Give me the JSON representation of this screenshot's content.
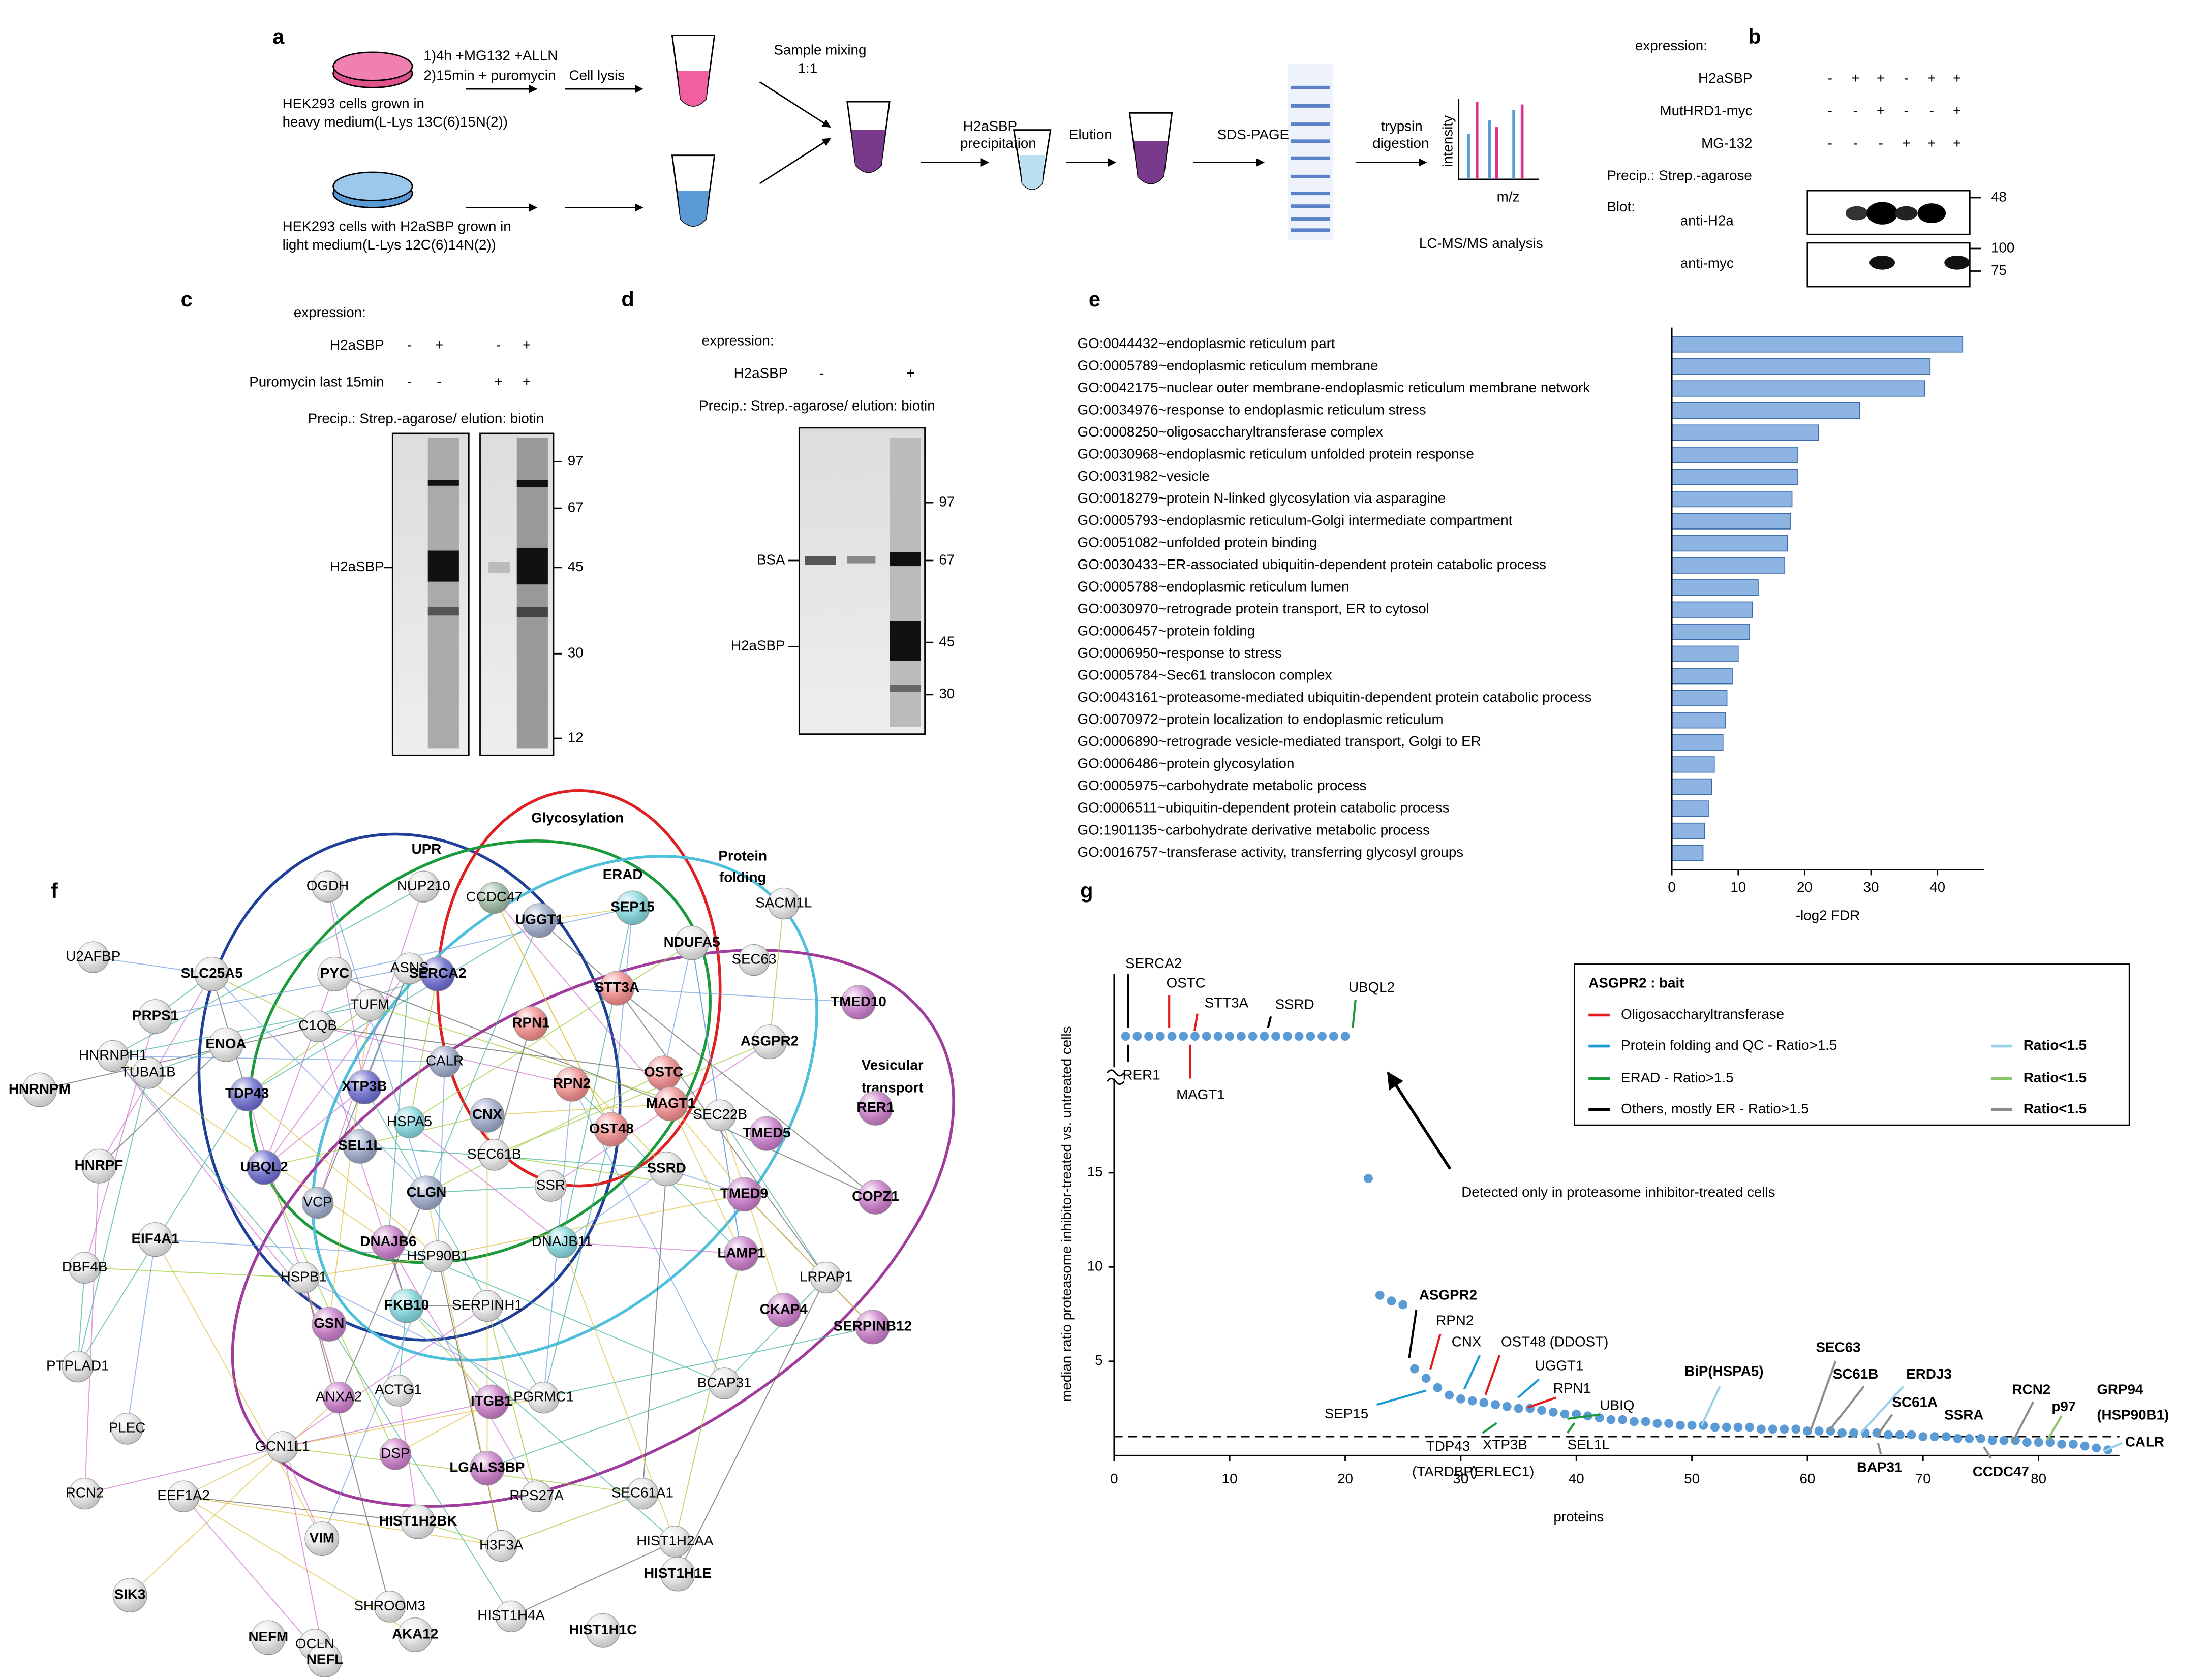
{
  "panel_a": {
    "label": "a",
    "treatment": [
      "1)4h +MG132 +ALLN",
      "2)15min + puromycin"
    ],
    "lysis": "Cell lysis",
    "mixing": [
      "Sample mixing",
      "1:1"
    ],
    "heavy": [
      "HEK293 cells grown in",
      "heavy medium(L-Lys 13C(6)15N(2))"
    ],
    "light": [
      "HEK293 cells with H2aSBP grown in",
      "light medium(L-Lys 12C(6)14N(2))"
    ],
    "precipitation": [
      "H2aSBP",
      "precipitation"
    ],
    "elution": "Elution",
    "sds": "SDS-PAGE",
    "digestion": [
      "trypsin",
      "digestion"
    ],
    "y_label": "intensity",
    "x_label": "m/z",
    "analysis": "LC-MS/MS analysis"
  },
  "panel_b": {
    "label": "b",
    "expression": "expression:",
    "rows": [
      {
        "name": "H2aSBP",
        "signs": [
          "-",
          "+",
          "+",
          "-",
          "+",
          "+"
        ]
      },
      {
        "name": "MutHRD1-myc",
        "signs": [
          "-",
          "-",
          "+",
          "-",
          "-",
          "+"
        ]
      },
      {
        "name": "MG-132",
        "signs": [
          "-",
          "-",
          "-",
          "+",
          "+",
          "+"
        ]
      }
    ],
    "precip": "Precip.: Strep.-agarose",
    "blot": "Blot:",
    "blots": [
      "anti-H2a",
      "anti-myc"
    ],
    "markers": [
      48,
      100,
      75
    ]
  },
  "panel_c": {
    "label": "c",
    "expression": "expression:",
    "rows": [
      {
        "name": "H2aSBP",
        "signs": [
          "-",
          "+",
          "-",
          "+"
        ]
      },
      {
        "name": "Puromycin last 15min",
        "signs": [
          "-",
          "-",
          "+",
          "+"
        ]
      }
    ],
    "precip": "Precip.: Strep.-agarose/ elution: biotin",
    "markers": [
      97,
      67,
      45,
      30,
      12
    ],
    "band": "H2aSBP"
  },
  "panel_d": {
    "label": "d",
    "expression": "expression:",
    "rows": [
      {
        "name": "H2aSBP",
        "signs": [
          "-",
          "+"
        ]
      }
    ],
    "precip": "Precip.: Strep.-agarose/ elution: biotin",
    "markers": [
      97,
      67,
      45,
      30
    ],
    "bands": [
      "BSA",
      "H2aSBP"
    ]
  },
  "panel_f": {
    "label": "f",
    "groups": [
      "UPR",
      "Glycosylation",
      "ERAD",
      "Protein",
      "folding",
      "Vesicular",
      "transport"
    ],
    "nodes": [
      {
        "label": "OGDH",
        "style": "small",
        "color": "#e6e6e6"
      },
      {
        "label": "NUP210",
        "style": "small",
        "color": "#e6e6e6"
      },
      {
        "label": "CCDC47",
        "style": "small",
        "color": "#9ab8a0"
      },
      {
        "label": "UGGT1",
        "style": "bold",
        "color": "#9aa8c8"
      },
      {
        "label": "SEP15",
        "style": "bold",
        "color": "#7fd6dc"
      },
      {
        "label": "SACM1L",
        "style": "small",
        "color": "#e6e6e6"
      },
      {
        "label": "SLC25A5",
        "style": "bold",
        "color": "#e6e6e6"
      },
      {
        "label": "PYC",
        "style": "bold",
        "color": "#e6e6e6"
      },
      {
        "label": "ASNS",
        "style": "small",
        "color": "#e6e6e6"
      },
      {
        "label": "SERCA2",
        "style": "bold",
        "color": "#6a6ad0"
      },
      {
        "label": "STT3A",
        "style": "red",
        "color": "#f08a8a"
      },
      {
        "label": "NDUFA5",
        "style": "bold",
        "color": "#e6e6e6"
      },
      {
        "label": "SEC63",
        "style": "small",
        "color": "#e6e6e6"
      },
      {
        "label": "U2AFBP",
        "style": "small",
        "color": "#e6e6e6"
      },
      {
        "label": "PRPS1",
        "style": "bold",
        "color": "#e6e6e6"
      },
      {
        "label": "ENOA",
        "style": "bold",
        "color": "#e6e6e6"
      },
      {
        "label": "TUFM",
        "style": "small",
        "color": "#e6e6e6"
      },
      {
        "label": "C1QB",
        "style": "small",
        "color": "#e6e6e6"
      },
      {
        "label": "RPN1",
        "style": "red",
        "color": "#f08a8a"
      },
      {
        "label": "TMED10",
        "style": "bold",
        "color": "#c87ac8"
      },
      {
        "label": "HNRNPH1",
        "style": "small",
        "color": "#e6e6e6"
      },
      {
        "label": "HNRNPM",
        "style": "bold",
        "color": "#e6e6e6"
      },
      {
        "label": "TUBA1B",
        "style": "small",
        "color": "#e6e6e6"
      },
      {
        "label": "TDP43",
        "style": "bold",
        "color": "#6a6ad0"
      },
      {
        "label": "XTP3B",
        "style": "bold",
        "color": "#6a6ad0"
      },
      {
        "label": "CALR",
        "style": "small",
        "color": "#9aa8c8"
      },
      {
        "label": "RPN2",
        "style": "red",
        "color": "#f08a8a"
      },
      {
        "label": "OSTC",
        "style": "red",
        "color": "#f08a8a"
      },
      {
        "label": "ASGPR2",
        "style": "bold",
        "color": "#e6e6e6"
      },
      {
        "label": "MAGT1",
        "style": "red",
        "color": "#f08a8a"
      },
      {
        "label": "RER1",
        "style": "bold",
        "color": "#c87ac8"
      },
      {
        "label": "CNX",
        "style": "bold",
        "color": "#9aa8c8"
      },
      {
        "label": "OST48",
        "style": "red",
        "color": "#f08a8a"
      },
      {
        "label": "HSPA5",
        "style": "small",
        "color": "#7fd6dc"
      },
      {
        "label": "SEC22B",
        "style": "small",
        "color": "#e6e6e6"
      },
      {
        "label": "TMED5",
        "style": "bold",
        "color": "#c87ac8"
      },
      {
        "label": "UBQL2",
        "style": "bold",
        "color": "#6a6ad0"
      },
      {
        "label": "SEL1L",
        "style": "bold",
        "color": "#9aa8c8"
      },
      {
        "label": "SEC61B",
        "style": "small",
        "color": "#e6e6e6"
      },
      {
        "label": "HNRPF",
        "style": "bold",
        "color": "#e6e6e6"
      },
      {
        "label": "CLGN",
        "style": "bold",
        "color": "#9aa8c8"
      },
      {
        "label": "SSR",
        "style": "small",
        "color": "#e6e6e6"
      },
      {
        "label": "SSRD",
        "style": "bold",
        "color": "#e6e6e6"
      },
      {
        "label": "TMED9",
        "style": "bold",
        "color": "#c87ac8"
      },
      {
        "label": "COPZ1",
        "style": "bold",
        "color": "#c87ac8"
      },
      {
        "label": "VCP",
        "style": "small",
        "color": "#9aa8c8"
      },
      {
        "label": "EIF4A1",
        "style": "bold",
        "color": "#e6e6e6"
      },
      {
        "label": "DNAJB6",
        "style": "bold",
        "color": "#c87ac8"
      },
      {
        "label": "HSP90B1",
        "style": "small",
        "color": "#e6e6e6"
      },
      {
        "label": "DNAJB11",
        "style": "small",
        "color": "#7fd6dc"
      },
      {
        "label": "LAMP1",
        "style": "bold",
        "color": "#c87ac8"
      },
      {
        "label": "DBF4B",
        "style": "small",
        "color": "#e6e6e6"
      },
      {
        "label": "LRPAP1",
        "style": "small",
        "color": "#e6e6e6"
      },
      {
        "label": "FKB10",
        "style": "bold",
        "color": "#7fd6dc"
      },
      {
        "label": "HSPB1",
        "style": "small",
        "color": "#e6e6e6"
      },
      {
        "label": "SERPINH1",
        "style": "small",
        "color": "#e6e6e6"
      },
      {
        "label": "CKAP4",
        "style": "bold",
        "color": "#c87ac8"
      },
      {
        "label": "SERPINB12",
        "style": "bold",
        "color": "#c87ac8"
      },
      {
        "label": "GSN",
        "style": "bold",
        "color": "#c87ac8"
      },
      {
        "label": "PTPLAD1",
        "style": "small",
        "color": "#e6e6e6"
      },
      {
        "label": "ANXA2",
        "style": "small",
        "color": "#c87ac8"
      },
      {
        "label": "ACTG1",
        "style": "small",
        "color": "#e6e6e6"
      },
      {
        "label": "PGRMC1",
        "style": "small",
        "color": "#e6e6e6"
      },
      {
        "label": "BCAP31",
        "style": "small",
        "color": "#e6e6e6"
      },
      {
        "label": "ITGB1",
        "style": "bold",
        "color": "#c87ac8"
      },
      {
        "label": "PLEC",
        "style": "small",
        "color": "#e6e6e6"
      },
      {
        "label": "LGALS3BP",
        "style": "bold",
        "color": "#c87ac8"
      },
      {
        "label": "RPS27A",
        "style": "small",
        "color": "#e6e6e6"
      },
      {
        "label": "SEC61A1",
        "style": "small",
        "color": "#e6e6e6"
      },
      {
        "label": "GCN1L1",
        "style": "small",
        "color": "#e6e6e6"
      },
      {
        "label": "DSP",
        "style": "small",
        "color": "#c87ac8"
      },
      {
        "label": "RCN2",
        "style": "small",
        "color": "#e6e6e6"
      },
      {
        "label": "EEF1A2",
        "style": "small",
        "color": "#e6e6e6"
      },
      {
        "label": "HIST1H2BK",
        "style": "bold",
        "color": "#e6e6e6"
      },
      {
        "label": "H3F3A",
        "style": "small",
        "color": "#e6e6e6"
      },
      {
        "label": "HIST1H2AA",
        "style": "small",
        "color": "#e6e6e6"
      },
      {
        "label": "VIM",
        "style": "bold",
        "color": "#e6e6e6"
      },
      {
        "label": "SIK3",
        "style": "bold",
        "color": "#e6e6e6"
      },
      {
        "label": "HIST1H1E",
        "style": "bold",
        "color": "#e6e6e6"
      },
      {
        "label": "SHROOM3",
        "style": "small",
        "color": "#e6e6e6"
      },
      {
        "label": "NEFM",
        "style": "bold",
        "color": "#e6e6e6"
      },
      {
        "label": "HIST1H4A",
        "style": "small",
        "color": "#e6e6e6"
      },
      {
        "label": "OCLN",
        "style": "small",
        "color": "#e6e6e6"
      },
      {
        "label": "AKA12",
        "style": "bold",
        "color": "#e6e6e6"
      },
      {
        "label": "HIST1H1C",
        "style": "bold",
        "color": "#e6e6e6"
      },
      {
        "label": "NEFL",
        "style": "bold",
        "color": "#e6e6e6"
      }
    ]
  },
  "chart_data": [
    {
      "type": "bar",
      "label": "e",
      "orientation": "horizontal",
      "color": "#8db4e2",
      "categories": [
        "GO:0044432~endoplasmic reticulum part",
        "GO:0005789~endoplasmic reticulum membrane",
        "GO:0042175~nuclear outer membrane-endoplasmic reticulum membrane network",
        "GO:0034976~response to endoplasmic reticulum stress",
        "GO:0008250~oligosaccharyltransferase complex",
        "GO:0030968~endoplasmic reticulum unfolded protein response",
        "GO:0031982~vesicle",
        "GO:0018279~protein N-linked glycosylation via asparagine",
        "GO:0005793~endoplasmic reticulum-Golgi intermediate compartment",
        "GO:0051082~unfolded protein binding",
        "GO:0030433~ER-associated ubiquitin-dependent protein catabolic process",
        "GO:0005788~endoplasmic reticulum lumen",
        "GO:0030970~retrograde protein transport, ER to cytosol",
        "GO:0006457~protein folding",
        "GO:0006950~response to stress",
        "GO:0005784~Sec61 translocon complex",
        "GO:0043161~proteasome-mediated ubiquitin-dependent protein catabolic process",
        "GO:0070972~protein localization to endoplasmic reticulum",
        "GO:0006890~retrograde vesicle-mediated transport, Golgi to ER",
        "GO:0006486~protein glycosylation",
        "GO:0005975~carbohydrate metabolic process",
        "GO:0006511~ubiquitin-dependent protein catabolic process",
        "GO:1901135~carbohydrate derivative metabolic process",
        "GO:0016757~transferase activity, transferring glycosyl groups"
      ],
      "values": [
        43.8,
        38.9,
        38.1,
        28.3,
        22.1,
        18.9,
        18.9,
        18.1,
        17.9,
        17.4,
        17.0,
        13.0,
        12.1,
        11.7,
        10.0,
        9.1,
        8.3,
        8.1,
        7.7,
        6.4,
        6.0,
        5.5,
        4.9,
        4.7
      ],
      "xlim": [
        0,
        47
      ],
      "xticks": [
        0,
        10,
        20,
        30,
        40
      ],
      "x_label": "-log2 FDR"
    },
    {
      "type": "scatter",
      "label": "g",
      "color": "#5b9bd5",
      "x": [
        22,
        23,
        24,
        25,
        26,
        27,
        28,
        29,
        30,
        31,
        32,
        33,
        34,
        35,
        36,
        37,
        38,
        39,
        40,
        41,
        42,
        43,
        44,
        45,
        46,
        47,
        48,
        49,
        50,
        51,
        52,
        53,
        54,
        55,
        56,
        57,
        58,
        59,
        60,
        61,
        62,
        63,
        64,
        65,
        66,
        67,
        68,
        69,
        70,
        71,
        72,
        73,
        74,
        75,
        76,
        77,
        78,
        79,
        80,
        81,
        82,
        83,
        84,
        85,
        86
      ],
      "values": [
        14.7,
        8.5,
        8.2,
        8.0,
        4.6,
        4.1,
        3.6,
        3.2,
        3.0,
        2.9,
        2.8,
        2.7,
        2.6,
        2.5,
        2.5,
        2.4,
        2.3,
        2.2,
        2.2,
        2.1,
        2.0,
        1.9,
        1.9,
        1.8,
        1.8,
        1.7,
        1.7,
        1.6,
        1.6,
        1.6,
        1.5,
        1.5,
        1.5,
        1.5,
        1.4,
        1.4,
        1.4,
        1.4,
        1.3,
        1.3,
        1.3,
        1.2,
        1.2,
        1.2,
        1.2,
        1.1,
        1.1,
        1.1,
        1.0,
        1.0,
        1.0,
        0.9,
        0.9,
        0.9,
        0.8,
        0.8,
        0.8,
        0.7,
        0.7,
        0.7,
        0.6,
        0.6,
        0.5,
        0.4,
        0.3
      ],
      "inhibitor_only_x": [
        1,
        2,
        3,
        4,
        5,
        6,
        7,
        8,
        9,
        10,
        11,
        12,
        13,
        14,
        15,
        16,
        17,
        18,
        19,
        20
      ],
      "inhibitor_only_note": "Detected only in proteasome inhibitor-treated cells",
      "reference_line": 1,
      "xlim": [
        0,
        87
      ],
      "xticks": [
        0,
        10,
        20,
        30,
        40,
        50,
        60,
        70,
        80
      ],
      "ylim": [
        0,
        20
      ],
      "yticks": [
        5,
        10,
        15
      ],
      "x_label": "proteins",
      "y_label": "median ratio proteasome inhibitor-treated vs. untreated cells",
      "legend_title": "ASGPR2 : bait",
      "legend": [
        {
          "name": "Oligosaccharyltransferase",
          "color": "#e31a1c"
        },
        {
          "name": "Protein folding and QC - Ratio>1.5",
          "color": "#1a9ad6"
        },
        {
          "name": "Ratio<1.5",
          "color": "#9ad0ea"
        },
        {
          "name": "ERAD - Ratio>1.5",
          "color": "#1a9a3a"
        },
        {
          "name": "Ratio<1.5",
          "color": "#8cc46c"
        },
        {
          "name": "Others, mostly ER - Ratio>1.5",
          "color": "#000000"
        },
        {
          "name": "Ratio<1.5",
          "color": "#8c8c8c"
        }
      ],
      "annotations": [
        {
          "text": "SERCA2",
          "color": "#000000"
        },
        {
          "text": "OSTC",
          "color": "#e31a1c"
        },
        {
          "text": "STT3A",
          "color": "#e31a1c"
        },
        {
          "text": "SSRD",
          "color": "#000000"
        },
        {
          "text": "UBQL2",
          "color": "#1a9a3a"
        },
        {
          "text": "RER1",
          "color": "#000000"
        },
        {
          "text": "MAGT1",
          "color": "#e31a1c"
        },
        {
          "text": "ASGPR2",
          "color": "#000000"
        },
        {
          "text": "RPN2",
          "color": "#e31a1c"
        },
        {
          "text": "CNX",
          "color": "#1a9ad6"
        },
        {
          "text": "OST48 (DDOST)",
          "color": "#e31a1c"
        },
        {
          "text": "UGGT1",
          "color": "#1a9ad6"
        },
        {
          "text": "RPN1",
          "color": "#e31a1c"
        },
        {
          "text": "UBIQ",
          "color": "#1a9a3a"
        },
        {
          "text": "SEP15",
          "color": "#1a9ad6"
        },
        {
          "text": "XTP3B",
          "color": "#1a9a3a"
        },
        {
          "text": "SEL1L",
          "color": "#1a9a3a"
        },
        {
          "text": "TDP43",
          "color": "#000000"
        },
        {
          "text": "(TARDBP)",
          "color": "#000000"
        },
        {
          "text": "(ERLEC1)",
          "color": "#1a9a3a"
        },
        {
          "text": "BiP(HSPA5)",
          "color": "#9ad0ea"
        },
        {
          "text": "SEC63",
          "color": "#8c8c8c"
        },
        {
          "text": "SC61B",
          "color": "#8c8c8c"
        },
        {
          "text": "ERDJ3",
          "color": "#9ad0ea"
        },
        {
          "text": "SC61A",
          "color": "#8c8c8c"
        },
        {
          "text": "SSRA",
          "color": "#8c8c8c"
        },
        {
          "text": "RCN2",
          "color": "#8c8c8c"
        },
        {
          "text": "p97",
          "color": "#8cc46c"
        },
        {
          "text": "GRP94",
          "color": "#9ad0ea"
        },
        {
          "text": "(HSP90B1)",
          "color": "#9ad0ea"
        },
        {
          "text": "BAP31",
          "color": "#8c8c8c"
        },
        {
          "text": "CCDC47",
          "color": "#8c8c8c"
        },
        {
          "text": "CALR",
          "color": "#9ad0ea"
        }
      ]
    }
  ]
}
